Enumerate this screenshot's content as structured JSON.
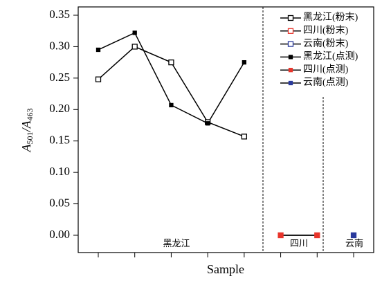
{
  "chart_data": {
    "type": "line",
    "xlabel": "Sample",
    "ylabel_parts": [
      "A",
      "501",
      "/A",
      "463"
    ],
    "xlim": [
      0.45,
      8.55
    ],
    "ylim": [
      -0.0275,
      0.3632
    ],
    "xticks": [
      1,
      2,
      3,
      4,
      5,
      6,
      7,
      8
    ],
    "yticks": [
      {
        "value": 0,
        "label": "0.00"
      },
      0.05,
      {
        "value": 0.1,
        "label": "0.10"
      },
      0.15,
      {
        "value": 0.2,
        "label": "0.20"
      },
      0.25,
      {
        "value": 0.3,
        "label": "0.30"
      },
      0.35
    ],
    "annotations": [
      "黑龙江",
      "四川",
      "云南"
    ],
    "series": [
      {
        "name": "黑龙江(粉末)",
        "color": "#000000",
        "marker": "open",
        "x": [
          1,
          2,
          3,
          4,
          5
        ],
        "values": [
          0.248,
          0.3,
          0.275,
          0.18,
          0.157
        ]
      },
      {
        "name": "四川(粉末)",
        "color": "#e8352b",
        "marker": "open",
        "x": [
          6,
          7
        ],
        "values": [
          0,
          0
        ]
      },
      {
        "name": "云南(粉末)",
        "color": "#2a3a9c",
        "marker": "open",
        "x": [
          8
        ],
        "values": [
          0
        ]
      },
      {
        "name": "黑龙江(点测)",
        "color": "#000000",
        "marker": "filled",
        "x": [
          1,
          2,
          3,
          4,
          5
        ],
        "values": [
          0.295,
          0.322,
          0.207,
          0.178,
          0.275
        ]
      },
      {
        "name": "四川(点测)",
        "color": "#e8352b",
        "marker": "filled",
        "x": [
          6,
          7
        ],
        "values": [
          0,
          0
        ]
      },
      {
        "name": "云南(点测)",
        "color": "#2a3a9c",
        "marker": "filled",
        "x": [
          8
        ],
        "values": [
          0
        ]
      }
    ]
  }
}
